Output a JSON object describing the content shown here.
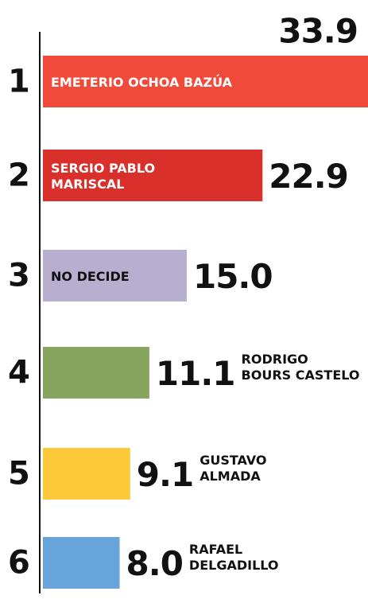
{
  "chart_data": {
    "type": "hbar",
    "ranks": [
      "1",
      "2",
      "3",
      "4",
      "5",
      "6"
    ],
    "categories": [
      [
        "EMETERIO OCHOA BAZÚA"
      ],
      [
        "SERGIO PABLO",
        "MARISCAL"
      ],
      [
        "NO DECIDE"
      ],
      [
        "RODRIGO",
        "BOURS CASTELO"
      ],
      [
        "GUSTAVO",
        "ALMADA"
      ],
      [
        "RAFAEL",
        "DELGADILLO"
      ]
    ],
    "values": [
      33.9,
      22.9,
      15,
      11.1,
      9.1,
      8
    ],
    "value_labels": [
      "33.9",
      "22.9",
      "15.0",
      "11.1",
      "9.1",
      "8.0"
    ],
    "colors": [
      "#f04a3b",
      "#d9302c",
      "#b7aed0",
      "#87a55f",
      "#fcc93a",
      "#67a4d9"
    ],
    "label_inside": [
      true,
      true,
      true,
      false,
      false,
      false
    ]
  }
}
